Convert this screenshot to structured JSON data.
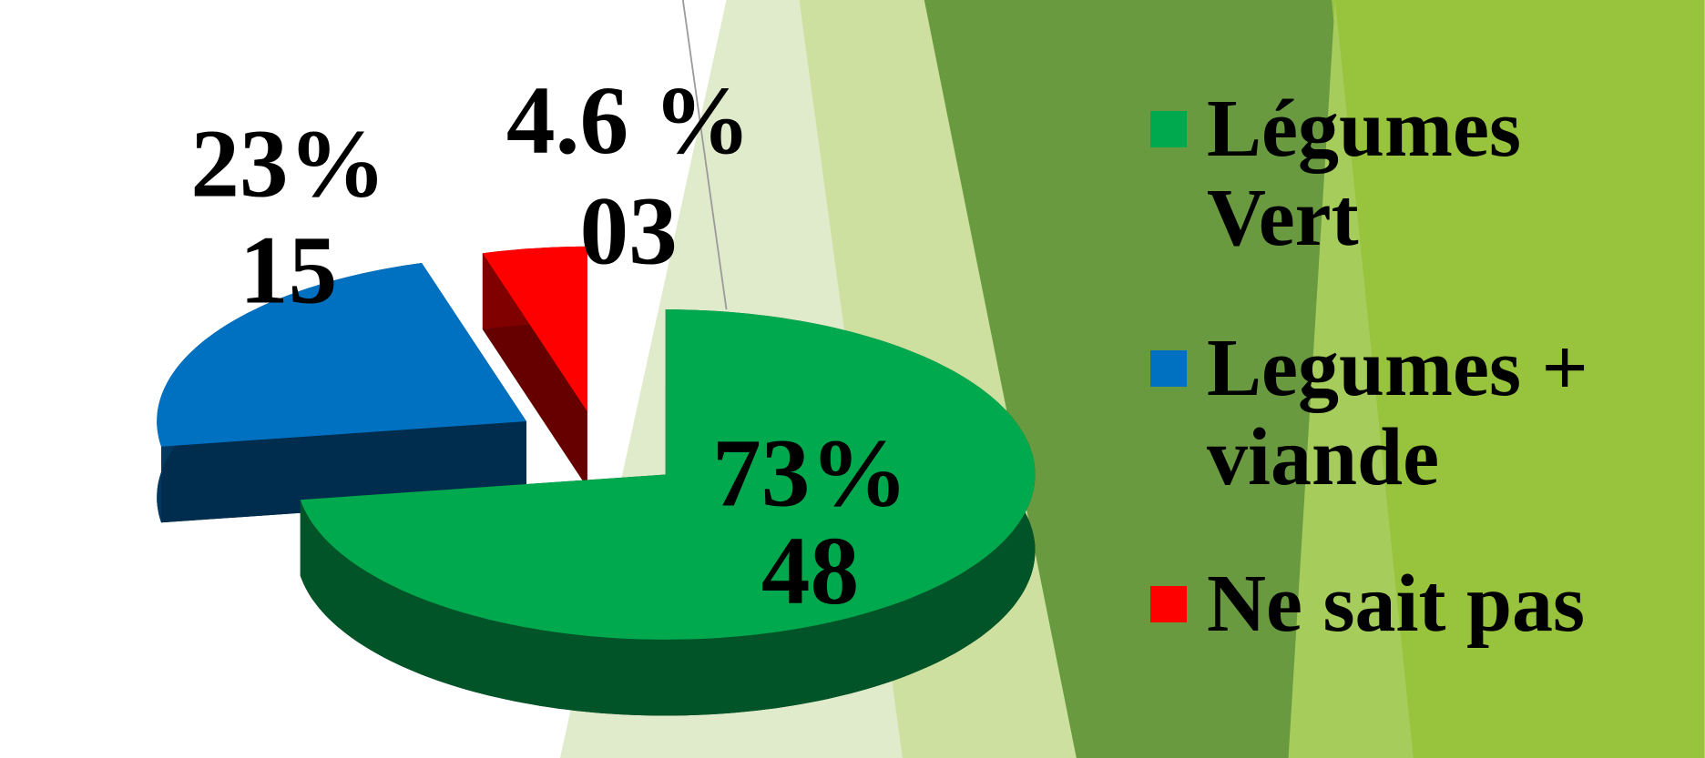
{
  "chart_data": {
    "type": "pie",
    "categories": [
      "Légumes Vert",
      "Legumes + viande",
      "Ne sait pas"
    ],
    "values": [
      73,
      23,
      4.6
    ],
    "value_labels": [
      "73%",
      "23%",
      "4.6 %"
    ],
    "counts": [
      48,
      15,
      3
    ],
    "count_labels": [
      "48",
      "15",
      "03"
    ],
    "colors": [
      "#00a84e",
      "#0070c0",
      "#ff0000"
    ]
  }
}
